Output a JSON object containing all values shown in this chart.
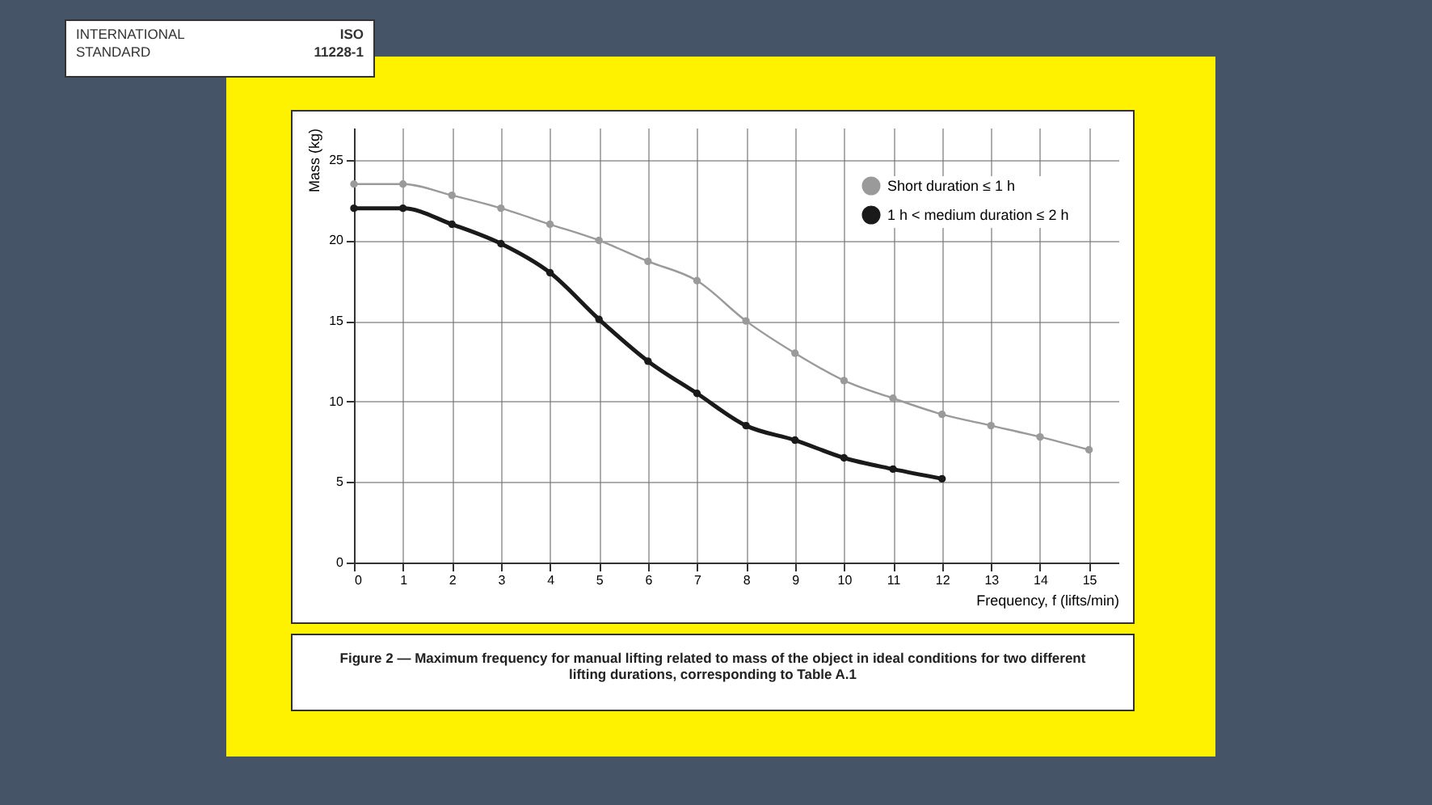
{
  "chart_data": {
    "type": "line",
    "title": "Figure 2 — Maximum frequency for manual lifting related to mass of the object in ideal conditions for two different lifting durations, corresponding to Table A.1",
    "annotations": [
      "INTERNATIONAL\nSTANDARD",
      "ISO\n11228-1"
    ],
    "xlabel": "Frequency, f (lifts/min)",
    "ylabel": "Mass (kg)",
    "series": [
      {
        "name": "Short duration ≤ 1 h",
        "color": "#9a9a9a",
        "x": [
          0,
          1,
          2,
          3,
          4,
          5,
          6,
          7,
          8,
          9,
          10,
          11,
          12,
          13,
          14,
          15
        ],
        "values": [
          23.5,
          23.5,
          22.8,
          22,
          21,
          20,
          18.7,
          17.5,
          15,
          13,
          11.3,
          10.2,
          9.2,
          8.5,
          7.8,
          7
        ]
      },
      {
        "name": "1 h < medium duration ≤ 2 h",
        "color": "#1a1a1a",
        "x": [
          0,
          1,
          2,
          3,
          4,
          5,
          6,
          7,
          8,
          9,
          10,
          11,
          12
        ],
        "values": [
          22,
          22,
          21,
          19.8,
          18,
          15.1,
          12.5,
          10.5,
          8.5,
          7.6,
          6.5,
          5.8,
          5.2
        ]
      }
    ],
    "xlim": [
      0,
      15.6
    ],
    "xticks": [
      0,
      1,
      2,
      3,
      4,
      5,
      6,
      7,
      8,
      9,
      10,
      11,
      12,
      13,
      14,
      15
    ],
    "ylim": [
      0,
      27
    ],
    "yticks": [
      0,
      5,
      10,
      15,
      20,
      25
    ],
    "grid": true,
    "legend": "top right",
    "marker": "circle",
    "line_style": "solid"
  }
}
